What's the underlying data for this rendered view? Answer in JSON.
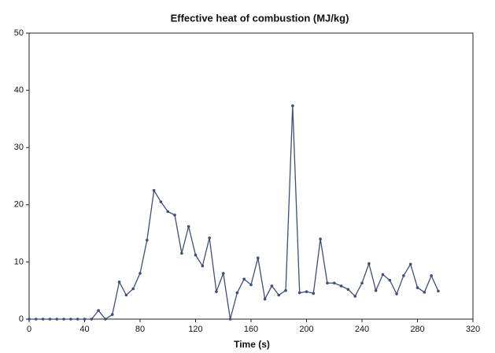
{
  "chart_data": {
    "type": "line",
    "title": "Effective heat of combustion (MJ/kg)",
    "x_label": "Time (s)",
    "x": [
      0,
      5,
      10,
      15,
      20,
      25,
      30,
      35,
      40,
      45,
      50,
      55,
      60,
      65,
      70,
      75,
      80,
      85,
      90,
      95,
      100,
      105,
      110,
      115,
      120,
      125,
      130,
      135,
      140,
      145,
      150,
      155,
      160,
      165,
      170,
      175,
      180,
      185,
      190,
      195,
      200,
      205,
      210,
      215,
      220,
      225,
      230,
      235,
      240,
      245,
      250,
      255,
      260,
      265,
      270,
      275,
      280,
      285,
      290,
      295
    ],
    "values": [
      0,
      0,
      0,
      0,
      0,
      0,
      0,
      0,
      0,
      0,
      1.5,
      0,
      0.8,
      6.5,
      4.2,
      5.3,
      8,
      13.8,
      22.5,
      20.5,
      18.8,
      18.2,
      11.5,
      16.2,
      11.2,
      9.3,
      14.2,
      4.8,
      8,
      0,
      4.6,
      7,
      6,
      10.7,
      3.5,
      5.8,
      4.2,
      5,
      37.3,
      4.6,
      4.8,
      4.5,
      14,
      6.3,
      6.3,
      5.8,
      5.2,
      4,
      6.3,
      9.7,
      5,
      7.8,
      6.8,
      4.4,
      7.6,
      9.6,
      5.5,
      4.7,
      7.6,
      4.9
    ],
    "color": "#3d4f7a",
    "xlim": [
      0,
      320
    ],
    "xticks": [
      0,
      40,
      80,
      120,
      160,
      200,
      240,
      280,
      320
    ],
    "ylim": [
      0,
      50
    ],
    "yticks": [
      0,
      10,
      20,
      30,
      40,
      50
    ]
  }
}
